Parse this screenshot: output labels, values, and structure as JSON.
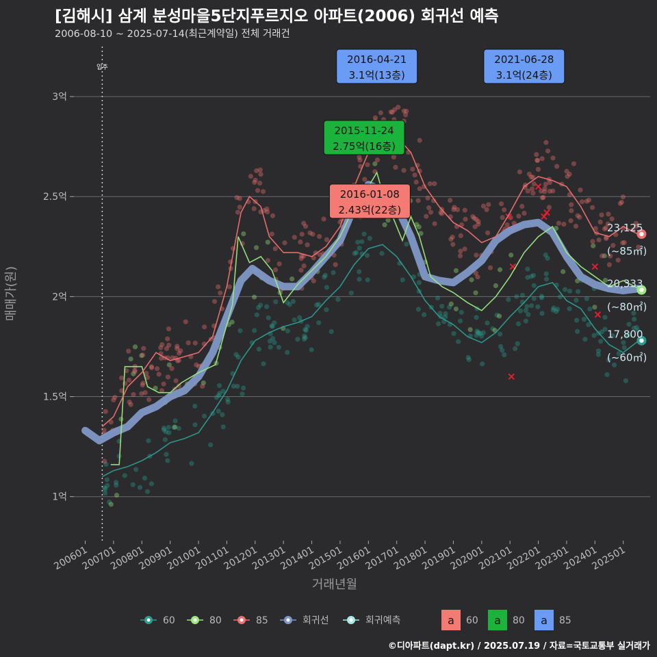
{
  "page": {
    "title": "[김해시] 삼계 분성마을5단지푸르지오 아파트(2006) 회귀선 예측",
    "subtitle": "2006-08-10 ~ 2025-07-14(최근계약일) 전체 거래건",
    "footer": "©디아파트(dapt.kr) / 2025.07.19 / 자료=국토교통부 실거래가"
  },
  "chart_data": {
    "type": "scatter",
    "xlabel": "거래년월",
    "ylabel": "매매가(원)",
    "ylim": [
      0.78,
      3.25
    ],
    "xlim": [
      2005.6,
      2025.95
    ],
    "y_ticks": [
      {
        "v": 1.0,
        "label": "1억"
      },
      {
        "v": 1.5,
        "label": "1.5억"
      },
      {
        "v": 2.0,
        "label": "2억"
      },
      {
        "v": 2.5,
        "label": "2.5억"
      },
      {
        "v": 3.0,
        "label": "3억"
      }
    ],
    "x_ticks": [
      {
        "v": 2006,
        "label": "200601"
      },
      {
        "v": 2007,
        "label": "200701"
      },
      {
        "v": 2008,
        "label": "200801"
      },
      {
        "v": 2009,
        "label": "200901"
      },
      {
        "v": 2010,
        "label": "201001"
      },
      {
        "v": 2011,
        "label": "201101"
      },
      {
        "v": 2012,
        "label": "201201"
      },
      {
        "v": 2013,
        "label": "201301"
      },
      {
        "v": 2014,
        "label": "201401"
      },
      {
        "v": 2015,
        "label": "201501"
      },
      {
        "v": 2016,
        "label": "201601"
      },
      {
        "v": 2017,
        "label": "201701"
      },
      {
        "v": 2018,
        "label": "201801"
      },
      {
        "v": 2019,
        "label": "201901"
      },
      {
        "v": 2020,
        "label": "202001"
      },
      {
        "v": 2021,
        "label": "202101"
      },
      {
        "v": 2022,
        "label": "202201"
      },
      {
        "v": 2023,
        "label": "202301"
      },
      {
        "v": 2024,
        "label": "202401"
      },
      {
        "v": 2025,
        "label": "202501"
      }
    ],
    "move_in": {
      "x": 2006.6,
      "label": "입주"
    },
    "series": [
      {
        "name": "60",
        "color": "#2a9d8f",
        "points": [
          [
            2006.6,
            1.1
          ],
          [
            2007.0,
            1.13
          ],
          [
            2007.5,
            1.15
          ],
          [
            2008.0,
            1.18
          ],
          [
            2008.5,
            1.22
          ],
          [
            2009.0,
            1.27
          ],
          [
            2009.5,
            1.29
          ],
          [
            2010.0,
            1.32
          ],
          [
            2010.5,
            1.42
          ],
          [
            2011.0,
            1.53
          ],
          [
            2011.5,
            1.68
          ],
          [
            2012.0,
            1.78
          ],
          [
            2012.5,
            1.82
          ],
          [
            2013.0,
            1.85
          ],
          [
            2013.5,
            1.87
          ],
          [
            2014.0,
            1.9
          ],
          [
            2014.5,
            1.98
          ],
          [
            2015.0,
            2.05
          ],
          [
            2015.5,
            2.16
          ],
          [
            2016.0,
            2.24
          ],
          [
            2016.5,
            2.26
          ],
          [
            2017.0,
            2.2
          ],
          [
            2017.5,
            2.1
          ],
          [
            2018.0,
            1.98
          ],
          [
            2018.5,
            1.9
          ],
          [
            2019.0,
            1.86
          ],
          [
            2019.5,
            1.8
          ],
          [
            2020.0,
            1.77
          ],
          [
            2020.5,
            1.82
          ],
          [
            2021.0,
            1.9
          ],
          [
            2021.5,
            1.97
          ],
          [
            2022.0,
            2.05
          ],
          [
            2022.5,
            2.07
          ],
          [
            2023.0,
            1.98
          ],
          [
            2023.5,
            1.94
          ],
          [
            2024.0,
            1.84
          ],
          [
            2024.5,
            1.76
          ],
          [
            2025.0,
            1.72
          ],
          [
            2025.55,
            1.78
          ]
        ]
      },
      {
        "name": "80",
        "color": "#9be87f",
        "points": [
          [
            2006.9,
            1.16
          ],
          [
            2007.2,
            1.16
          ],
          [
            2007.4,
            1.65
          ],
          [
            2008.0,
            1.65
          ],
          [
            2008.2,
            1.55
          ],
          [
            2008.6,
            1.52
          ],
          [
            2009.0,
            1.52
          ],
          [
            2009.4,
            1.57
          ],
          [
            2010.0,
            1.62
          ],
          [
            2010.6,
            1.66
          ],
          [
            2011.2,
            1.96
          ],
          [
            2011.4,
            2.3
          ],
          [
            2011.8,
            2.17
          ],
          [
            2012.2,
            2.2
          ],
          [
            2012.6,
            2.13
          ],
          [
            2013.0,
            1.97
          ],
          [
            2013.5,
            2.06
          ],
          [
            2014.0,
            2.13
          ],
          [
            2014.5,
            2.2
          ],
          [
            2015.0,
            2.3
          ],
          [
            2015.5,
            2.45
          ],
          [
            2016.0,
            2.55
          ],
          [
            2016.3,
            2.62
          ],
          [
            2016.5,
            2.52
          ],
          [
            2016.8,
            2.42
          ],
          [
            2017.2,
            2.28
          ],
          [
            2017.5,
            2.4
          ],
          [
            2017.8,
            2.3
          ],
          [
            2018.2,
            2.1
          ],
          [
            2018.6,
            2.05
          ],
          [
            2019.0,
            2.02
          ],
          [
            2019.5,
            1.97
          ],
          [
            2020.0,
            1.93
          ],
          [
            2020.5,
            2.0
          ],
          [
            2021.0,
            2.1
          ],
          [
            2021.5,
            2.22
          ],
          [
            2022.0,
            2.3
          ],
          [
            2022.5,
            2.35
          ],
          [
            2023.0,
            2.22
          ],
          [
            2023.5,
            2.15
          ],
          [
            2024.0,
            2.1
          ],
          [
            2024.5,
            2.05
          ],
          [
            2025.0,
            2.08
          ],
          [
            2025.55,
            2.04
          ]
        ]
      },
      {
        "name": "85",
        "color": "#f07070",
        "points": [
          [
            2006.6,
            1.35
          ],
          [
            2007.0,
            1.4
          ],
          [
            2007.5,
            1.55
          ],
          [
            2008.0,
            1.62
          ],
          [
            2008.5,
            1.72
          ],
          [
            2009.0,
            1.68
          ],
          [
            2009.5,
            1.7
          ],
          [
            2010.0,
            1.72
          ],
          [
            2010.5,
            1.8
          ],
          [
            2011.0,
            2.05
          ],
          [
            2011.5,
            2.42
          ],
          [
            2011.8,
            2.5
          ],
          [
            2012.2,
            2.45
          ],
          [
            2012.5,
            2.3
          ],
          [
            2013.0,
            2.22
          ],
          [
            2013.5,
            2.22
          ],
          [
            2014.0,
            2.2
          ],
          [
            2014.5,
            2.25
          ],
          [
            2015.0,
            2.35
          ],
          [
            2015.5,
            2.55
          ],
          [
            2016.0,
            2.72
          ],
          [
            2016.5,
            2.82
          ],
          [
            2017.0,
            2.8
          ],
          [
            2017.5,
            2.72
          ],
          [
            2018.0,
            2.55
          ],
          [
            2018.5,
            2.45
          ],
          [
            2019.0,
            2.37
          ],
          [
            2019.5,
            2.33
          ],
          [
            2020.0,
            2.27
          ],
          [
            2020.5,
            2.3
          ],
          [
            2021.0,
            2.42
          ],
          [
            2021.5,
            2.55
          ],
          [
            2022.0,
            2.6
          ],
          [
            2022.5,
            2.58
          ],
          [
            2023.0,
            2.55
          ],
          [
            2023.5,
            2.45
          ],
          [
            2024.0,
            2.32
          ],
          [
            2024.5,
            2.3
          ],
          [
            2025.0,
            2.35
          ],
          [
            2025.55,
            2.31
          ]
        ]
      }
    ],
    "regression": {
      "name": "회귀선",
      "color": "#7f98c7",
      "points": [
        [
          2006.0,
          1.33
        ],
        [
          2006.5,
          1.28
        ],
        [
          2007.0,
          1.32
        ],
        [
          2007.5,
          1.35
        ],
        [
          2008.0,
          1.42
        ],
        [
          2008.5,
          1.45
        ],
        [
          2009.0,
          1.5
        ],
        [
          2009.5,
          1.53
        ],
        [
          2010.0,
          1.6
        ],
        [
          2010.5,
          1.72
        ],
        [
          2011.0,
          1.9
        ],
        [
          2011.5,
          2.08
        ],
        [
          2011.9,
          2.14
        ],
        [
          2012.5,
          2.08
        ],
        [
          2013.0,
          2.05
        ],
        [
          2013.5,
          2.05
        ],
        [
          2014.0,
          2.12
        ],
        [
          2014.5,
          2.2
        ],
        [
          2015.0,
          2.28
        ],
        [
          2015.5,
          2.45
        ],
        [
          2016.0,
          2.56
        ],
        [
          2016.5,
          2.53
        ],
        [
          2017.0,
          2.45
        ],
        [
          2017.5,
          2.3
        ],
        [
          2018.0,
          2.1
        ],
        [
          2018.5,
          2.08
        ],
        [
          2019.0,
          2.07
        ],
        [
          2019.5,
          2.12
        ],
        [
          2020.0,
          2.18
        ],
        [
          2020.5,
          2.28
        ],
        [
          2021.0,
          2.33
        ],
        [
          2021.5,
          2.36
        ],
        [
          2022.0,
          2.37
        ],
        [
          2022.5,
          2.32
        ],
        [
          2023.0,
          2.2
        ],
        [
          2023.5,
          2.1
        ],
        [
          2024.0,
          2.06
        ],
        [
          2024.5,
          2.04
        ],
        [
          2025.0,
          2.03
        ],
        [
          2025.55,
          2.04
        ]
      ]
    },
    "endpoints": [
      {
        "series": "85",
        "y": 2.3125,
        "value": "23,125",
        "sub": "(~85㎡)"
      },
      {
        "series": "80",
        "y": 2.0333,
        "value": "20,333",
        "sub": "(~80㎡)"
      },
      {
        "series": "60",
        "y": 1.78,
        "value": "17,800",
        "sub": "(~60㎡)"
      }
    ],
    "annotations": [
      {
        "x": 2016.3,
        "y": 3.1,
        "series": "85",
        "color": "#6b9cf5",
        "date": "2016-04-21",
        "price": "3.1억(13층)"
      },
      {
        "x": 2021.5,
        "y": 3.1,
        "series": "85",
        "color": "#6b9cf5",
        "date": "2021-06-28",
        "price": "3.1억(24층)"
      },
      {
        "x": 2015.85,
        "y": 2.75,
        "series": "80",
        "color": "#1bb33c",
        "date": "2015-11-24",
        "price": "2.75억(16층)"
      },
      {
        "x": 2016.05,
        "y": 2.43,
        "series": "60",
        "color": "#f47b73",
        "date": "2016-01-08",
        "price": "2.43억(22층)"
      }
    ]
  },
  "legend": {
    "items": [
      {
        "name": "60",
        "color": "#2a9d8f"
      },
      {
        "name": "80",
        "color": "#9be87f"
      },
      {
        "name": "85",
        "color": "#f07070"
      },
      {
        "name": "회귀선",
        "color": "#7f98c7"
      },
      {
        "name": "회귀예측",
        "color": "#a9e7ea"
      }
    ],
    "fill_items": [
      {
        "glyph": "a",
        "name": "60",
        "color": "#f47b73"
      },
      {
        "glyph": "a",
        "name": "80",
        "color": "#1bb33c"
      },
      {
        "glyph": "a",
        "name": "85",
        "color": "#6b9cf5"
      }
    ]
  }
}
